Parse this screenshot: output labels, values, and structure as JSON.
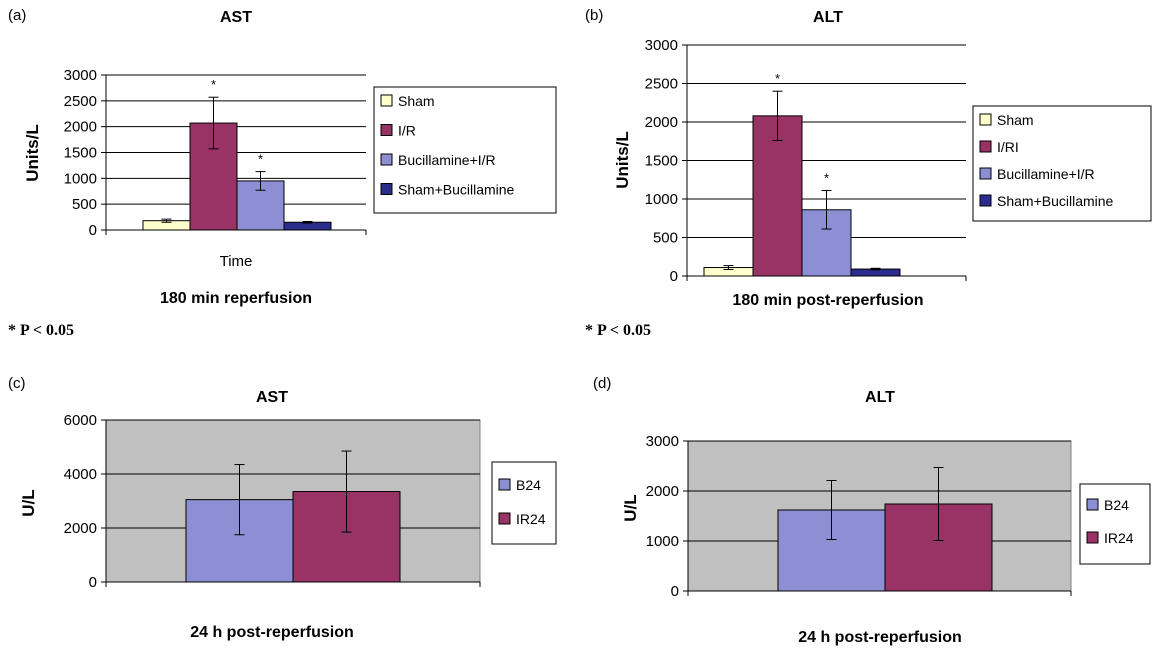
{
  "colors": {
    "sham": "#ffffcc",
    "ir": "#993366",
    "bucillamine_ir": "#8c8fd4",
    "sham_bucillamine": "#2c2c8c",
    "b24": "#8c8fd4",
    "ir24": "#993366",
    "plot_bg_gray": "#c0c0c0",
    "gridline": "#000000"
  },
  "chart_data": [
    {
      "id": "a",
      "type": "bar",
      "panel_label": "(a)",
      "title": "AST",
      "ylabel": "Units/L",
      "xlabel": "Time",
      "caption": "180 min reperfusion",
      "note": "* P < 0.05",
      "ylim": [
        0,
        3000
      ],
      "yticks": [
        "0",
        "500",
        "1000",
        "1500",
        "2000",
        "2500",
        "3000"
      ],
      "grid": true,
      "plot_background": "white",
      "legend_position": "right",
      "series": [
        {
          "name": "Sham",
          "value": 180,
          "error": 30,
          "star": "",
          "color": "#ffffcc"
        },
        {
          "name": "I/R",
          "value": 2070,
          "error": 500,
          "star": "*",
          "color": "#993366"
        },
        {
          "name": "Bucillamine+I/R",
          "value": 950,
          "error": 180,
          "star": "*",
          "color": "#8c8fd4"
        },
        {
          "name": "Sham+Bucillamine",
          "value": 150,
          "error": 15,
          "star": "",
          "color": "#2c2c8c"
        }
      ]
    },
    {
      "id": "b",
      "type": "bar",
      "panel_label": "(b)",
      "title": "ALT",
      "ylabel": "Units/L",
      "xlabel": "",
      "caption": "180 min post-reperfusion",
      "note": "* P < 0.05",
      "ylim": [
        0,
        3000
      ],
      "yticks": [
        "0",
        "500",
        "1000",
        "1500",
        "2000",
        "2500",
        "3000"
      ],
      "grid": true,
      "plot_background": "white",
      "legend_position": "right",
      "series": [
        {
          "name": "Sham",
          "value": 110,
          "error": 25,
          "star": "",
          "color": "#ffffcc"
        },
        {
          "name": "I/RI",
          "value": 2080,
          "error": 320,
          "star": "*",
          "color": "#993366"
        },
        {
          "name": "Bucillamine+I/R",
          "value": 860,
          "error": 250,
          "star": "*",
          "color": "#8c8fd4"
        },
        {
          "name": "Sham+Bucillamine",
          "value": 90,
          "error": 10,
          "star": "",
          "color": "#2c2c8c"
        }
      ]
    },
    {
      "id": "c",
      "type": "bar",
      "panel_label": "(c)",
      "title": "AST",
      "ylabel": "U/L",
      "xlabel": "",
      "caption": "24 h post-reperfusion",
      "note": "",
      "ylim": [
        0,
        6000
      ],
      "yticks": [
        "0",
        "2000",
        "4000",
        "6000"
      ],
      "grid": true,
      "plot_background": "gray",
      "legend_position": "right",
      "series": [
        {
          "name": "B24",
          "value": 3050,
          "error": 1300,
          "star": "",
          "color": "#8c8fd4"
        },
        {
          "name": "IR24",
          "value": 3350,
          "error": 1500,
          "star": "",
          "color": "#993366"
        }
      ]
    },
    {
      "id": "d",
      "type": "bar",
      "panel_label": "(d)",
      "title": "ALT",
      "ylabel": "U/L",
      "xlabel": "",
      "caption": "24 h post-reperfusion",
      "note": "",
      "ylim": [
        0,
        3000
      ],
      "yticks": [
        "0",
        "1000",
        "2000",
        "3000"
      ],
      "grid": true,
      "plot_background": "gray",
      "legend_position": "right",
      "series": [
        {
          "name": "B24",
          "value": 1620,
          "error": 590,
          "star": "",
          "color": "#8c8fd4"
        },
        {
          "name": "IR24",
          "value": 1740,
          "error": 730,
          "star": "",
          "color": "#993366"
        }
      ]
    }
  ]
}
